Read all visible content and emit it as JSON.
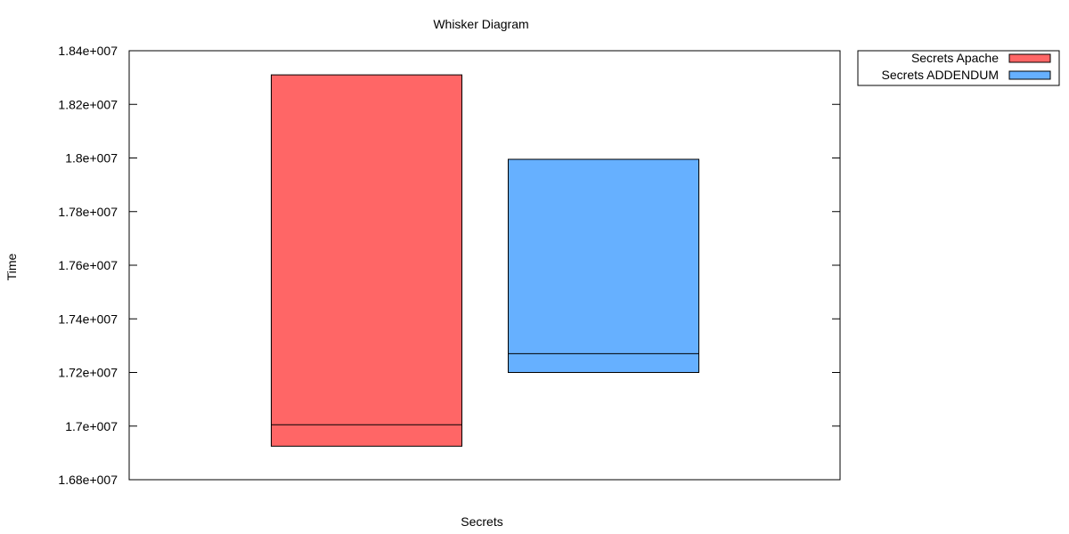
{
  "chart_data": {
    "type": "box",
    "title": "Whisker Diagram",
    "xlabel": "Secrets",
    "ylabel": "Time",
    "ylim": [
      16800000,
      18400000
    ],
    "yticks": [
      16800000,
      17000000,
      17200000,
      17400000,
      17600000,
      17800000,
      18000000,
      18200000,
      18400000
    ],
    "ytick_labels": [
      "1.68e+007",
      "1.7e+007",
      "1.72e+007",
      "1.74e+007",
      "1.76e+007",
      "1.78e+007",
      "1.8e+007",
      "1.82e+007",
      "1.84e+007"
    ],
    "grid": false,
    "legend_position": "outside-top-right",
    "series": [
      {
        "name": "Secrets Apache",
        "color": "#ff6666",
        "low": 16925000,
        "median": 17005000,
        "high": 18310000
      },
      {
        "name": "Secrets ADDENDUM",
        "color": "#66b0ff",
        "low": 17200000,
        "median": 17270000,
        "high": 17995000
      }
    ]
  }
}
